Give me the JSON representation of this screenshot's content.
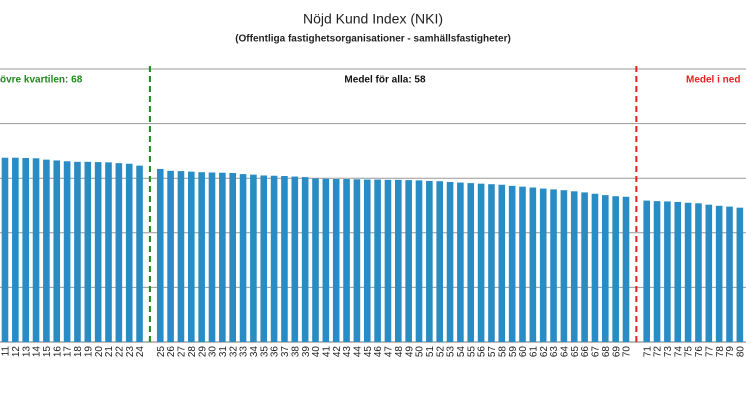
{
  "chart_data": {
    "type": "bar",
    "title": "Nöjd Kund Index (NKI)",
    "subtitle": "(Offentliga fastighetsorganisationer - samhällsfastigheter)",
    "categories": [
      "11",
      "12",
      "13",
      "14",
      "15",
      "16",
      "17",
      "18",
      "19",
      "20",
      "21",
      "22",
      "23",
      "24",
      null,
      "25",
      "26",
      "27",
      "28",
      "29",
      "30",
      "31",
      "32",
      "33",
      "34",
      "35",
      "36",
      "37",
      "38",
      "39",
      "40",
      "41",
      "42",
      "43",
      "44",
      "45",
      "46",
      "47",
      "48",
      "49",
      "50",
      "51",
      "52",
      "53",
      "54",
      "55",
      "56",
      "57",
      "58",
      "59",
      "60",
      "61",
      "62",
      "63",
      "64",
      "65",
      "66",
      "67",
      "68",
      "69",
      "70",
      null,
      "71",
      "72",
      "73",
      "74",
      "75",
      "76",
      "77",
      "78",
      "79",
      "80"
    ],
    "values": [
      67.5,
      67.5,
      67.4,
      67.3,
      66.8,
      66.5,
      66.2,
      66.0,
      66.0,
      65.9,
      65.8,
      65.5,
      65.3,
      64.6,
      null,
      63.4,
      62.7,
      62.6,
      62.4,
      62.2,
      62.1,
      62.0,
      61.9,
      61.5,
      61.3,
      61.0,
      60.9,
      60.8,
      60.6,
      60.4,
      59.9,
      59.8,
      59.7,
      59.7,
      59.6,
      59.5,
      59.5,
      59.4,
      59.4,
      59.3,
      59.2,
      59.0,
      58.9,
      58.6,
      58.4,
      58.2,
      58.0,
      57.8,
      57.6,
      57.2,
      56.9,
      56.6,
      56.2,
      55.9,
      55.6,
      55.2,
      54.8,
      54.3,
      53.8,
      53.4,
      53.2,
      null,
      51.8,
      51.6,
      51.5,
      51.3,
      51.0,
      50.8,
      50.3,
      49.9,
      49.6,
      49.2
    ],
    "color": "#2a8cc4",
    "ylim": [
      0,
      100
    ],
    "yticks": [
      0,
      20,
      40,
      60,
      80,
      100
    ],
    "grid": true,
    "separators": [
      {
        "color": "#1e8a1e"
      },
      {
        "color": "#e82020"
      }
    ],
    "annotations": [
      {
        "text": "övre kvartilen: 68",
        "color": "#1e8a1e"
      },
      {
        "text": "Medel för alla: 58",
        "color": "#111111"
      },
      {
        "text": "Medel i ned",
        "color": "#e82020"
      }
    ]
  }
}
